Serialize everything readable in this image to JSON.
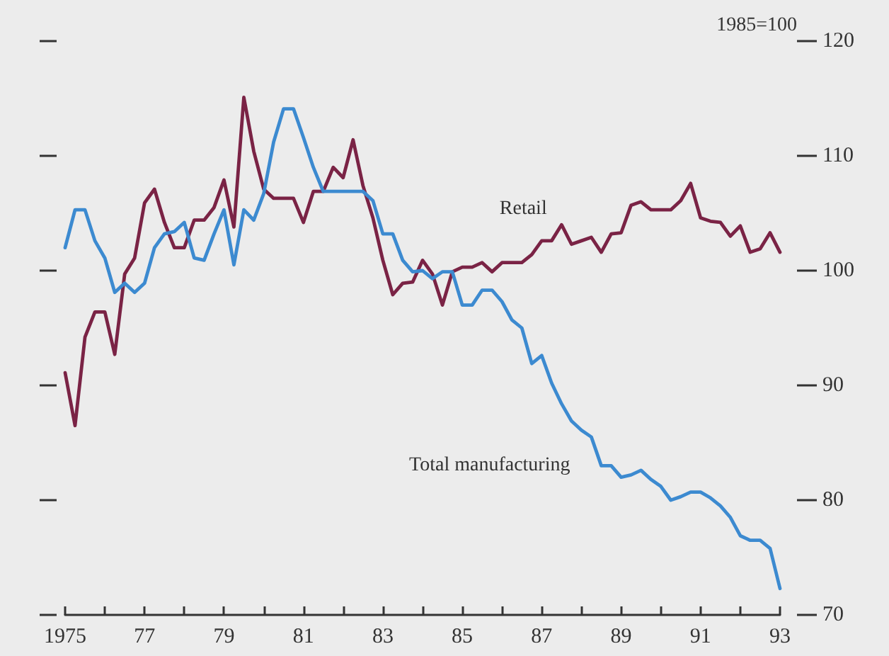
{
  "chart_data": {
    "type": "line",
    "ylabel": "1985=100",
    "x": [
      1975,
      1975.25,
      1975.5,
      1975.75,
      1976,
      1976.25,
      1976.5,
      1976.75,
      1977,
      1977.25,
      1977.5,
      1977.75,
      1978,
      1978.25,
      1978.5,
      1978.75,
      1979,
      1979.25,
      1979.5,
      1979.75,
      1980,
      1980.25,
      1980.5,
      1980.75,
      1981,
      1981.25,
      1981.5,
      1981.75,
      1982,
      1982.25,
      1982.5,
      1982.75,
      1983,
      1983.25,
      1983.5,
      1983.75,
      1984,
      1984.25,
      1984.5,
      1984.75,
      1985,
      1985.25,
      1985.5,
      1985.75,
      1986,
      1986.25,
      1986.5,
      1986.75,
      1987,
      1987.25,
      1987.5,
      1987.75,
      1988,
      1988.25,
      1988.5,
      1988.75,
      1989,
      1989.25,
      1989.5,
      1989.75,
      1990,
      1990.25,
      1990.5,
      1990.75,
      1991,
      1991.25,
      1991.5,
      1991.75,
      1992,
      1992.25,
      1992.5,
      1992.75,
      1993
    ],
    "series": [
      {
        "name": "Retail",
        "color": "#7a2345",
        "values": [
          91.1,
          86.5,
          94.2,
          96.4,
          96.4,
          92.7,
          99.7,
          101.1,
          105.9,
          107.1,
          104.2,
          102.0,
          102.0,
          104.4,
          104.4,
          105.5,
          107.9,
          103.8,
          115.1,
          110.4,
          107.1,
          106.3,
          106.3,
          106.3,
          104.2,
          106.9,
          106.9,
          109.0,
          108.1,
          111.4,
          107.4,
          104.6,
          100.9,
          97.9,
          98.9,
          99.0,
          100.9,
          99.7,
          97.0,
          99.9,
          100.3,
          100.3,
          100.7,
          99.9,
          100.7,
          100.7,
          100.7,
          101.4,
          102.6,
          102.6,
          104.0,
          102.3,
          102.6,
          102.9,
          101.6,
          103.2,
          103.3,
          105.7,
          106.0,
          105.3,
          105.3,
          105.3,
          106.1,
          107.6,
          104.6,
          104.3,
          104.2,
          103.0,
          103.9,
          101.6,
          101.9,
          103.3,
          101.6
        ]
      },
      {
        "name": "Total manufacturing",
        "color": "#3c8ad0",
        "values": [
          102.0,
          105.3,
          105.3,
          102.6,
          101.1,
          98.1,
          98.9,
          98.1,
          98.9,
          102.0,
          103.2,
          103.4,
          104.2,
          101.1,
          100.9,
          103.2,
          105.3,
          100.5,
          105.3,
          104.4,
          106.7,
          111.2,
          114.1,
          114.1,
          111.6,
          109.0,
          106.9,
          106.9,
          106.9,
          106.9,
          106.9,
          106.1,
          103.2,
          103.2,
          100.9,
          99.9,
          100.0,
          99.3,
          99.9,
          99.9,
          97.0,
          97.0,
          98.3,
          98.3,
          97.3,
          95.7,
          95.0,
          91.9,
          92.6,
          90.2,
          88.4,
          86.9,
          86.1,
          85.5,
          83.0,
          83.0,
          82.0,
          82.2,
          82.6,
          81.8,
          81.2,
          80.0,
          80.3,
          80.7,
          80.7,
          80.2,
          79.5,
          78.5,
          76.9,
          76.5,
          76.5,
          75.8,
          72.3
        ]
      }
    ],
    "xlim": [
      1975,
      1993
    ],
    "xticks": [
      {
        "value": 1975,
        "label": "1975"
      },
      {
        "value": 1976,
        "label": null
      },
      {
        "value": 1977,
        "label": "77"
      },
      {
        "value": 1978,
        "label": null
      },
      {
        "value": 1979,
        "label": "79"
      },
      {
        "value": 1980,
        "label": null
      },
      {
        "value": 1981,
        "label": "81"
      },
      {
        "value": 1982,
        "label": null
      },
      {
        "value": 1983,
        "label": "83"
      },
      {
        "value": 1984,
        "label": null
      },
      {
        "value": 1985,
        "label": "85"
      },
      {
        "value": 1986,
        "label": null
      },
      {
        "value": 1987,
        "label": "87"
      },
      {
        "value": 1988,
        "label": null
      },
      {
        "value": 1989,
        "label": "89"
      },
      {
        "value": 1990,
        "label": null
      },
      {
        "value": 1991,
        "label": "91"
      },
      {
        "value": 1992,
        "label": null
      },
      {
        "value": 1993,
        "label": "93"
      }
    ],
    "ylim": [
      70,
      120
    ],
    "yticks": [
      70,
      80,
      90,
      100,
      110,
      120
    ],
    "grid": false,
    "legend": false,
    "marker": "none",
    "line_style": "solid"
  }
}
